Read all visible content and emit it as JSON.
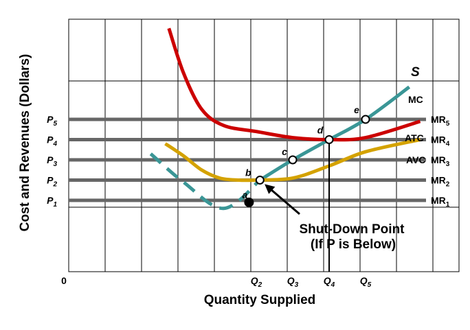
{
  "chart_data": {
    "type": "line",
    "xlabel": "Quantity Supplied",
    "ylabel": "Cost and Revenues (Dollars)",
    "origin_label": "0",
    "x_ticks": [
      {
        "id": "Q2",
        "base": "Q",
        "sub": "2",
        "x": 2
      },
      {
        "id": "Q3",
        "base": "Q",
        "sub": "3",
        "x": 3
      },
      {
        "id": "Q4",
        "base": "Q",
        "sub": "4",
        "x": 4
      },
      {
        "id": "Q5",
        "base": "Q",
        "sub": "5",
        "x": 5
      }
    ],
    "y_ticks": [
      {
        "id": "P1",
        "base": "P",
        "sub": "1",
        "y": 1
      },
      {
        "id": "P2",
        "base": "P",
        "sub": "2",
        "y": 2
      },
      {
        "id": "P3",
        "base": "P",
        "sub": "3",
        "y": 3
      },
      {
        "id": "P4",
        "base": "P",
        "sub": "4",
        "y": 4
      },
      {
        "id": "P5",
        "base": "P",
        "sub": "5",
        "y": 5
      }
    ],
    "mr_lines": [
      {
        "id": "MR1",
        "base": "MR",
        "sub": "1",
        "y": 1
      },
      {
        "id": "MR2",
        "base": "MR",
        "sub": "2",
        "y": 2
      },
      {
        "id": "MR3",
        "base": "MR",
        "sub": "3",
        "y": 3
      },
      {
        "id": "MR4",
        "base": "MR",
        "sub": "4",
        "y": 4
      },
      {
        "id": "MR5",
        "base": "MR",
        "sub": "5",
        "y": 5
      }
    ],
    "series": [
      {
        "id": "mc-solid",
        "name": "MC",
        "color": "#3a9696",
        "style": "solid",
        "points": [
          [
            2.1,
            2.0
          ],
          [
            3.0,
            3.0
          ],
          [
            4.0,
            4.0
          ],
          [
            5.0,
            5.0
          ],
          [
            6.2,
            6.6
          ]
        ]
      },
      {
        "id": "mc-dashed",
        "color": "#3a9696",
        "style": "dashed",
        "points": [
          [
            -0.9,
            3.3
          ],
          [
            0.0,
            1.9
          ],
          [
            1.1,
            0.6
          ],
          [
            2.1,
            2.0
          ]
        ]
      },
      {
        "id": "atc",
        "name": "ATC",
        "color": "#cc0000",
        "style": "solid",
        "points": [
          [
            -0.4,
            9.5
          ],
          [
            0.0,
            7.3
          ],
          [
            0.5,
            5.5
          ],
          [
            1.1,
            4.7
          ],
          [
            2.0,
            4.4
          ],
          [
            3.0,
            4.1
          ],
          [
            4.0,
            4.0
          ],
          [
            5.0,
            4.1
          ],
          [
            6.5,
            4.9
          ]
        ]
      },
      {
        "id": "avc",
        "name": "AVC",
        "color": "#d4a200",
        "style": "solid",
        "points": [
          [
            -0.5,
            3.8
          ],
          [
            0.0,
            3.2
          ],
          [
            0.5,
            2.5
          ],
          [
            1.0,
            2.1
          ],
          [
            1.5,
            2.0
          ],
          [
            2.0,
            2.0
          ],
          [
            3.0,
            2.1
          ],
          [
            4.0,
            2.7
          ],
          [
            5.0,
            3.4
          ],
          [
            6.5,
            4.0
          ]
        ]
      }
    ],
    "points": [
      {
        "id": "a",
        "label": "a",
        "x": 1.8,
        "y": 0.9,
        "filled": true
      },
      {
        "id": "b",
        "label": "b",
        "x": 2.1,
        "y": 2.0,
        "filled": false
      },
      {
        "id": "c",
        "label": "c",
        "x": 3.0,
        "y": 3.0,
        "filled": false
      },
      {
        "id": "d",
        "label": "d",
        "x": 4.0,
        "y": 4.0,
        "filled": false
      },
      {
        "id": "e",
        "label": "e",
        "x": 5.0,
        "y": 5.0,
        "filled": false
      }
    ],
    "curve_labels": {
      "s": "S",
      "mc": "MC",
      "atc": "ATC",
      "avc": "AVC"
    },
    "annotation": {
      "line1": "Shut-Down Point",
      "line2": "(If P is Below)"
    },
    "colors": {
      "mc": "#3a9696",
      "atc": "#cc0000",
      "avc": "#d4a200",
      "mr": "#666666",
      "grid": "#000000"
    }
  }
}
